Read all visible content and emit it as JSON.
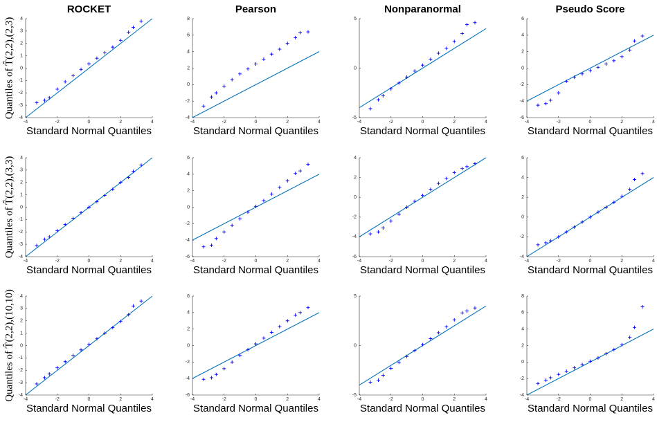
{
  "chart_data": [
    {
      "type": "scatter",
      "title": "ROCKET",
      "xlabel": "Standard Normal Quantiles",
      "ylabel": "Quantiles of T̂(2,2),(2,3)",
      "x": [
        -3.3,
        -2.8,
        -2.5,
        -2,
        -1.5,
        -1,
        -0.5,
        0,
        0.5,
        1,
        1.5,
        2,
        2.5,
        2.8,
        3.3
      ],
      "y": [
        -2.8,
        -2.6,
        -2.4,
        -1.7,
        -1.1,
        -0.6,
        -0.1,
        0.35,
        0.8,
        1.25,
        1.7,
        2.25,
        2.9,
        3.3,
        3.8
      ],
      "color": "#0000ff",
      "reference_line": {
        "x": [
          -4,
          4
        ],
        "y": [
          -4,
          4
        ],
        "color": "#0072bd"
      },
      "xlim": [
        -4,
        4
      ],
      "xticks": [
        -4,
        -2,
        0,
        2,
        4
      ],
      "ylim": [
        -4,
        4
      ],
      "yticks": [
        -4,
        -3,
        -2,
        -1,
        0,
        1,
        2,
        3,
        4
      ]
    },
    {
      "type": "scatter",
      "title": "Pearson",
      "xlabel": "Standard Normal Quantiles",
      "x": [
        -3.3,
        -2.8,
        -2.5,
        -2,
        -1.5,
        -1,
        -0.5,
        0,
        0.5,
        1,
        1.5,
        2,
        2.5,
        2.8,
        3.3
      ],
      "y": [
        -2.6,
        -1.5,
        -1,
        -0.2,
        0.6,
        1.3,
        1.9,
        2.5,
        3.1,
        3.7,
        4.3,
        5,
        5.7,
        6.3,
        6.4
      ],
      "color": "#0000ff",
      "reference_line": {
        "x": [
          -4,
          4
        ],
        "y": [
          -4,
          4
        ],
        "color": "#0072bd"
      },
      "xlim": [
        -4,
        4
      ],
      "xticks": [
        -4,
        -2,
        0,
        2,
        4
      ],
      "ylim": [
        -4,
        8
      ],
      "yticks": [
        -4,
        -2,
        0,
        2,
        4,
        6,
        8
      ]
    },
    {
      "type": "scatter",
      "title": "Nonparanormal",
      "xlabel": "Standard Normal Quantiles",
      "x": [
        -3.3,
        -2.8,
        -2.5,
        -2,
        -1.5,
        -1,
        -0.5,
        0,
        0.5,
        1,
        1.5,
        2,
        2.5,
        2.8,
        3.3
      ],
      "y": [
        -4.1,
        -3.2,
        -2.8,
        -2.1,
        -1.5,
        -0.9,
        -0.3,
        0.3,
        0.9,
        1.5,
        2,
        2.7,
        3.5,
        4.4,
        4.6
      ],
      "color": "#0000ff",
      "reference_line": {
        "x": [
          -4,
          4
        ],
        "y": [
          -4,
          4
        ],
        "color": "#0072bd"
      },
      "xlim": [
        -4,
        4
      ],
      "xticks": [
        -4,
        -2,
        0,
        2,
        4
      ],
      "ylim": [
        -5,
        5
      ],
      "yticks": [
        -5,
        0,
        5
      ]
    },
    {
      "type": "scatter",
      "title": "Pseudo Score",
      "xlabel": "Standard Normal Quantiles",
      "x": [
        -3.3,
        -2.8,
        -2.5,
        -2,
        -1.5,
        -1,
        -0.5,
        0,
        0.5,
        1,
        1.5,
        2,
        2.5,
        2.8,
        3.3
      ],
      "y": [
        -4.5,
        -4.3,
        -3.9,
        -3,
        -1.6,
        -1.1,
        -0.7,
        -0.3,
        0.1,
        0.5,
        0.9,
        1.4,
        2.2,
        3.3,
        3.9
      ],
      "color": "#0000ff",
      "reference_line": {
        "x": [
          -4,
          4
        ],
        "y": [
          -4,
          4
        ],
        "color": "#0072bd"
      },
      "xlim": [
        -4,
        4
      ],
      "xticks": [
        -4,
        -2,
        0,
        2,
        4
      ],
      "ylim": [
        -6,
        6
      ],
      "yticks": [
        -6,
        -4,
        -2,
        0,
        2,
        4,
        6
      ]
    },
    {
      "type": "scatter",
      "xlabel": "Standard Normal Quantiles",
      "ylabel": "Quantiles of T̂(2,2),(3,3)",
      "x": [
        -3.3,
        -2.8,
        -2.5,
        -2,
        -1.5,
        -1,
        -0.5,
        0,
        0.5,
        1,
        1.5,
        2,
        2.5,
        2.8,
        3.3
      ],
      "y": [
        -3.1,
        -2.6,
        -2.4,
        -1.9,
        -1.4,
        -0.9,
        -0.45,
        0,
        0.45,
        0.95,
        1.45,
        2,
        2.4,
        2.9,
        3.4
      ],
      "color": "#0000ff",
      "reference_line": {
        "x": [
          -4,
          4
        ],
        "y": [
          -4,
          4
        ],
        "color": "#0072bd"
      },
      "xlim": [
        -4,
        4
      ],
      "xticks": [
        -4,
        -2,
        0,
        2,
        4
      ],
      "ylim": [
        -4,
        4
      ],
      "yticks": [
        -4,
        -3,
        -2,
        -1,
        0,
        1,
        2,
        3,
        4
      ]
    },
    {
      "type": "scatter",
      "xlabel": "Standard Normal Quantiles",
      "x": [
        -3.3,
        -2.8,
        -2.5,
        -2,
        -1.5,
        -1,
        -0.5,
        0,
        0.5,
        1,
        1.5,
        2,
        2.5,
        2.8,
        3.3
      ],
      "y": [
        -4.8,
        -4.6,
        -3.8,
        -3,
        -2.2,
        -1.4,
        -0.6,
        0.1,
        0.8,
        1.6,
        2.4,
        3.2,
        4.1,
        4.4,
        5.2
      ],
      "color": "#0000ff",
      "reference_line": {
        "x": [
          -4,
          4
        ],
        "y": [
          -4,
          4
        ],
        "color": "#0072bd"
      },
      "xlim": [
        -4,
        4
      ],
      "xticks": [
        -4,
        -2,
        0,
        2,
        4
      ],
      "ylim": [
        -6,
        6
      ],
      "yticks": [
        -6,
        -4,
        -2,
        0,
        2,
        4,
        6
      ]
    },
    {
      "type": "scatter",
      "xlabel": "Standard Normal Quantiles",
      "x": [
        -3.3,
        -2.8,
        -2.5,
        -2,
        -1.5,
        -1,
        -0.5,
        0,
        0.5,
        1,
        1.5,
        2,
        2.5,
        2.8,
        3.3
      ],
      "y": [
        -3.7,
        -3.5,
        -3.1,
        -2.4,
        -1.7,
        -1,
        -0.4,
        0.2,
        0.8,
        1.4,
        1.9,
        2.5,
        2.9,
        3.1,
        3.4
      ],
      "color": "#0000ff",
      "reference_line": {
        "x": [
          -4,
          4
        ],
        "y": [
          -4,
          4
        ],
        "color": "#0072bd"
      },
      "xlim": [
        -4,
        4
      ],
      "xticks": [
        -4,
        -2,
        0,
        2,
        4
      ],
      "ylim": [
        -6,
        4
      ],
      "yticks": [
        -6,
        -4,
        -2,
        0,
        2,
        4
      ]
    },
    {
      "type": "scatter",
      "xlabel": "Standard Normal Quantiles",
      "x": [
        -3.3,
        -2.8,
        -2.5,
        -2,
        -1.5,
        -1,
        -0.5,
        0,
        0.5,
        1,
        1.5,
        2,
        2.5,
        2.8,
        3.3
      ],
      "y": [
        -2.8,
        -2.6,
        -2.4,
        -2,
        -1.5,
        -1,
        -0.5,
        0,
        0.5,
        1,
        1.5,
        2.1,
        2.8,
        3.8,
        4.4
      ],
      "color": "#0000ff",
      "reference_line": {
        "x": [
          -4,
          4
        ],
        "y": [
          -4,
          4
        ],
        "color": "#0072bd"
      },
      "xlim": [
        -4,
        4
      ],
      "xticks": [
        -4,
        -2,
        0,
        2,
        4
      ],
      "ylim": [
        -4,
        6
      ],
      "yticks": [
        -4,
        -2,
        0,
        2,
        4,
        6
      ]
    },
    {
      "type": "scatter",
      "xlabel": "Standard Normal Quantiles",
      "ylabel": "Quantiles of T̂(2,2),(10,10)",
      "x": [
        -3.3,
        -2.8,
        -2.5,
        -2,
        -1.5,
        -1,
        -0.5,
        0,
        0.5,
        1,
        1.5,
        2,
        2.5,
        2.8,
        3.3
      ],
      "y": [
        -3.1,
        -2.6,
        -2.3,
        -1.8,
        -1.3,
        -0.8,
        -0.35,
        0.1,
        0.55,
        1,
        1.45,
        1.95,
        2.5,
        3.2,
        3.6
      ],
      "color": "#0000ff",
      "reference_line": {
        "x": [
          -4,
          4
        ],
        "y": [
          -4,
          4
        ],
        "color": "#0072bd"
      },
      "xlim": [
        -4,
        4
      ],
      "xticks": [
        -4,
        -2,
        0,
        2,
        4
      ],
      "ylim": [
        -4,
        4
      ],
      "yticks": [
        -4,
        -3,
        -2,
        -1,
        0,
        1,
        2,
        3,
        4
      ]
    },
    {
      "type": "scatter",
      "xlabel": "Standard Normal Quantiles",
      "x": [
        -3.3,
        -2.8,
        -2.5,
        -2,
        -1.5,
        -1,
        -0.5,
        0,
        0.5,
        1,
        1.5,
        2,
        2.5,
        2.8,
        3.3
      ],
      "y": [
        -4.1,
        -3.9,
        -3.5,
        -2.8,
        -2,
        -1.2,
        -0.5,
        0.2,
        0.9,
        1.6,
        2.3,
        3,
        3.7,
        4,
        4.6
      ],
      "color": "#0000ff",
      "reference_line": {
        "x": [
          -4,
          4
        ],
        "y": [
          -4,
          4
        ],
        "color": "#0072bd"
      },
      "xlim": [
        -4,
        4
      ],
      "xticks": [
        -4,
        -2,
        0,
        2,
        4
      ],
      "ylim": [
        -6,
        6
      ],
      "yticks": [
        -6,
        -4,
        -2,
        0,
        2,
        4,
        6
      ]
    },
    {
      "type": "scatter",
      "xlabel": "Standard Normal Quantiles",
      "x": [
        -3.3,
        -2.8,
        -2.5,
        -2,
        -1.5,
        -1,
        -0.5,
        0,
        0.5,
        1,
        1.5,
        2,
        2.5,
        2.8,
        3.3
      ],
      "y": [
        -3.7,
        -3.5,
        -3,
        -2.3,
        -1.7,
        -1.1,
        -0.5,
        0.1,
        0.7,
        1.3,
        1.9,
        2.6,
        3.3,
        3.5,
        3.8
      ],
      "color": "#0000ff",
      "reference_line": {
        "x": [
          -4,
          4
        ],
        "y": [
          -4,
          4
        ],
        "color": "#0072bd"
      },
      "xlim": [
        -4,
        4
      ],
      "xticks": [
        -4,
        -2,
        0,
        2,
        4
      ],
      "ylim": [
        -5,
        5
      ],
      "yticks": [
        -5,
        0,
        5
      ]
    },
    {
      "type": "scatter",
      "xlabel": "Standard Normal Quantiles",
      "x": [
        -3.3,
        -2.8,
        -2.5,
        -2,
        -1.5,
        -1,
        -0.5,
        0,
        0.5,
        1,
        1.5,
        2,
        2.5,
        2.8,
        3.3
      ],
      "y": [
        -2.6,
        -2.2,
        -1.9,
        -1.5,
        -1.1,
        -0.7,
        -0.3,
        0.1,
        0.5,
        1,
        1.5,
        2.1,
        3,
        4.2,
        6.7
      ],
      "color": "#0000ff",
      "reference_line": {
        "x": [
          -4,
          4
        ],
        "y": [
          -4,
          4
        ],
        "color": "#0072bd"
      },
      "xlim": [
        -4,
        4
      ],
      "xticks": [
        -4,
        -2,
        0,
        2,
        4
      ],
      "ylim": [
        -4,
        8
      ],
      "yticks": [
        -4,
        -2,
        0,
        2,
        4,
        6,
        8
      ]
    }
  ]
}
